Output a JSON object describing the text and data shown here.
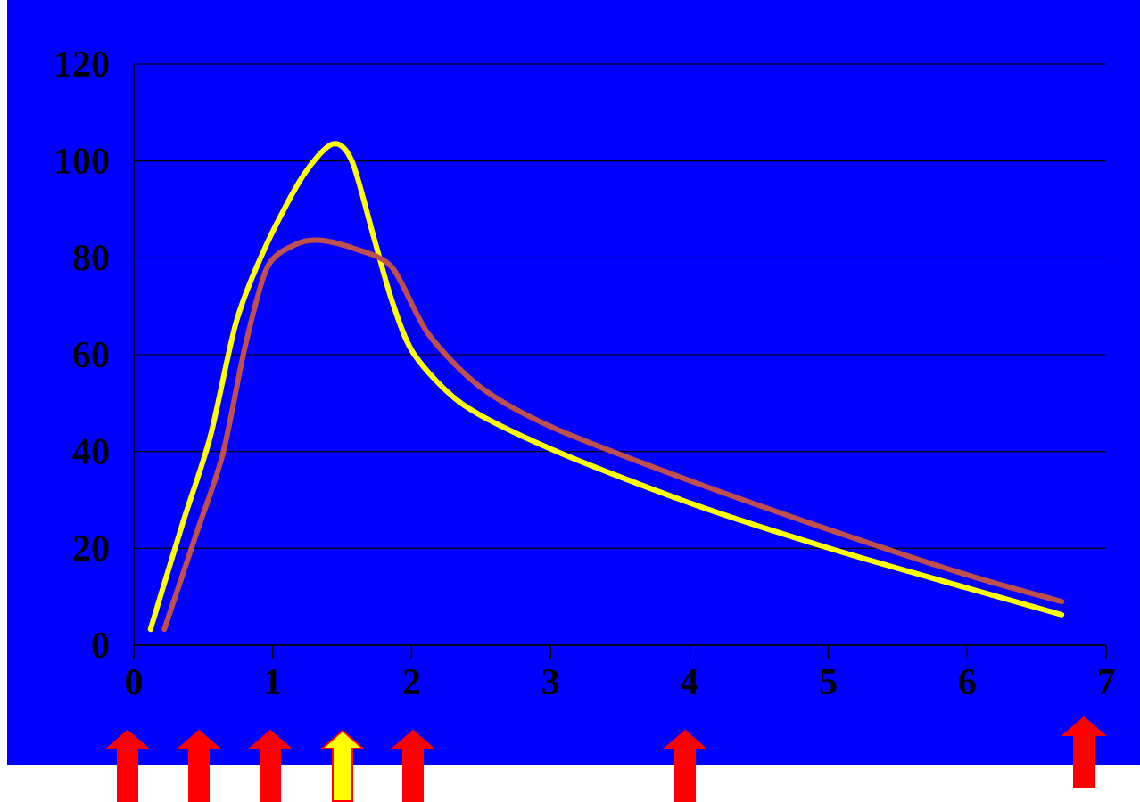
{
  "chart_data": {
    "type": "line",
    "xlim": [
      0,
      7
    ],
    "ylim": [
      0,
      120
    ],
    "xticks": [
      0,
      1,
      2,
      3,
      4,
      5,
      6,
      7
    ],
    "yticks": [
      0,
      20,
      40,
      60,
      80,
      100,
      120
    ],
    "grid": "y",
    "line_style": "solid",
    "series": [
      {
        "color": "#ffff00",
        "x": [
          0.12,
          0.35,
          0.55,
          0.74,
          0.96,
          1.22,
          1.43,
          1.57,
          1.73,
          1.86,
          2.02,
          2.38,
          3.02,
          4.01,
          5.01,
          6.0,
          6.68
        ],
        "values": [
          3.3,
          25,
          43,
          67,
          83,
          97,
          103.5,
          100,
          84,
          71,
          60,
          49.5,
          40.3,
          29.3,
          20,
          11.8,
          6.3
        ]
      },
      {
        "color": "#c0504d",
        "x": [
          0.22,
          0.45,
          0.64,
          0.8,
          0.96,
          1.16,
          1.35,
          1.6,
          1.86,
          2.12,
          2.5,
          3.02,
          4.01,
          5.01,
          6.0,
          6.68
        ],
        "values": [
          3.3,
          23,
          39.4,
          61.5,
          78,
          82.7,
          83.6,
          81.8,
          78,
          64.3,
          53.2,
          44.9,
          33.9,
          23.8,
          14.5,
          9
        ]
      }
    ]
  }
}
